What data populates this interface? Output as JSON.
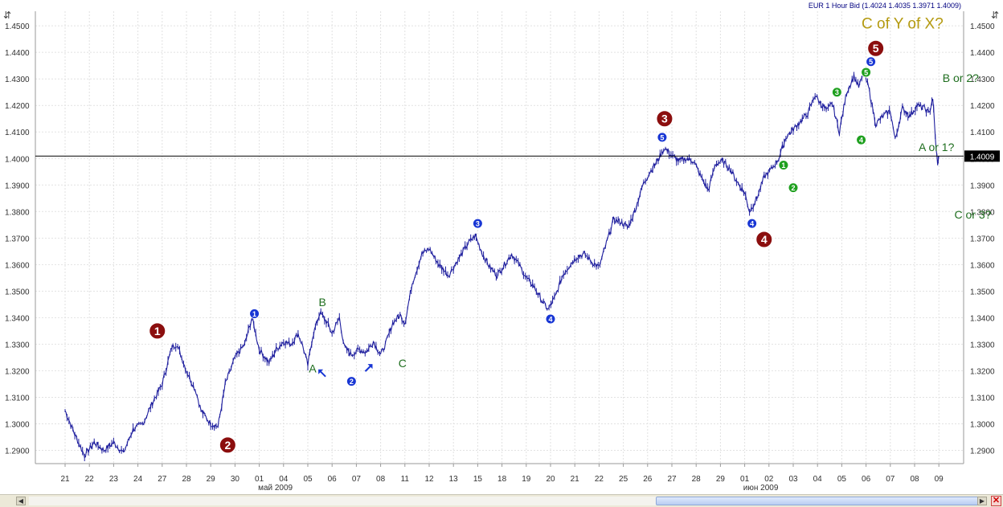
{
  "header": {
    "info": "EUR 1 Hour Bid (1.4024 1.4035 1.3971 1.4009)"
  },
  "price_tag": "1.4009",
  "icons": {
    "left": "scale-icon",
    "right": "scale-icon",
    "close": "close-icon"
  },
  "chart_data": {
    "type": "line",
    "title": "",
    "xlabel": "",
    "ylabel": "",
    "ylim": [
      1.285,
      1.4555
    ],
    "grid": true,
    "current_price": 1.4009,
    "y_ticks": [
      "1.2900",
      "1.3000",
      "1.3100",
      "1.3200",
      "1.3300",
      "1.3400",
      "1.3500",
      "1.3600",
      "1.3700",
      "1.3800",
      "1.3900",
      "1.4000",
      "1.4100",
      "1.4200",
      "1.4300",
      "1.4400",
      "1.4500"
    ],
    "x_ticks": [
      "21",
      "22",
      "23",
      "24",
      "27",
      "28",
      "29",
      "30",
      "01",
      "04",
      "05",
      "06",
      "07",
      "08",
      "11",
      "12",
      "13",
      "15",
      "18",
      "19",
      "20",
      "21",
      "22",
      "25",
      "26",
      "27",
      "28",
      "29",
      "01",
      "02",
      "03",
      "04",
      "05",
      "06",
      "07",
      "08",
      "09"
    ],
    "month_labels": [
      {
        "label": "май 2009",
        "at_index": 8
      },
      {
        "label": "июн 2009",
        "at_index": 28
      }
    ],
    "series": [
      {
        "points": [
          [
            0,
            1.305
          ],
          [
            0.4,
            1.296
          ],
          [
            0.8,
            1.288
          ],
          [
            1.2,
            1.293
          ],
          [
            1.6,
            1.29
          ],
          [
            2.0,
            1.293
          ],
          [
            2.4,
            1.289
          ],
          [
            2.8,
            1.298
          ],
          [
            3.2,
            1.3
          ],
          [
            3.6,
            1.308
          ],
          [
            4.0,
            1.315
          ],
          [
            4.4,
            1.329
          ],
          [
            4.6,
            1.33
          ],
          [
            5.0,
            1.32
          ],
          [
            5.4,
            1.312
          ],
          [
            5.6,
            1.305
          ],
          [
            6.0,
            1.3
          ],
          [
            6.3,
            1.299
          ],
          [
            6.6,
            1.315
          ],
          [
            7.0,
            1.325
          ],
          [
            7.4,
            1.33
          ],
          [
            7.7,
            1.34
          ],
          [
            8.0,
            1.328
          ],
          [
            8.4,
            1.323
          ],
          [
            8.7,
            1.328
          ],
          [
            9.0,
            1.331
          ],
          [
            9.3,
            1.33
          ],
          [
            9.6,
            1.334
          ],
          [
            9.8,
            1.329
          ],
          [
            10.0,
            1.322
          ],
          [
            10.2,
            1.333
          ],
          [
            10.5,
            1.342
          ],
          [
            10.8,
            1.338
          ],
          [
            11.0,
            1.334
          ],
          [
            11.3,
            1.34
          ],
          [
            11.5,
            1.329
          ],
          [
            11.8,
            1.326
          ],
          [
            12.1,
            1.328
          ],
          [
            12.4,
            1.327
          ],
          [
            12.7,
            1.331
          ],
          [
            13.0,
            1.326
          ],
          [
            13.2,
            1.33
          ],
          [
            13.5,
            1.338
          ],
          [
            13.8,
            1.341
          ],
          [
            14.0,
            1.338
          ],
          [
            14.3,
            1.353
          ],
          [
            14.7,
            1.364
          ],
          [
            15.0,
            1.366
          ],
          [
            15.4,
            1.36
          ],
          [
            15.8,
            1.356
          ],
          [
            16.2,
            1.362
          ],
          [
            16.6,
            1.368
          ],
          [
            16.9,
            1.371
          ],
          [
            17.2,
            1.364
          ],
          [
            17.5,
            1.359
          ],
          [
            17.8,
            1.356
          ],
          [
            18.1,
            1.36
          ],
          [
            18.4,
            1.364
          ],
          [
            18.7,
            1.36
          ],
          [
            19.0,
            1.355
          ],
          [
            19.3,
            1.352
          ],
          [
            19.6,
            1.347
          ],
          [
            19.9,
            1.343
          ],
          [
            20.2,
            1.348
          ],
          [
            20.5,
            1.356
          ],
          [
            20.8,
            1.36
          ],
          [
            21.1,
            1.363
          ],
          [
            21.4,
            1.364
          ],
          [
            21.7,
            1.361
          ],
          [
            22.0,
            1.359
          ],
          [
            22.3,
            1.368
          ],
          [
            22.6,
            1.377
          ],
          [
            22.9,
            1.376
          ],
          [
            23.2,
            1.374
          ],
          [
            23.5,
            1.381
          ],
          [
            23.8,
            1.39
          ],
          [
            24.1,
            1.395
          ],
          [
            24.4,
            1.399
          ],
          [
            24.7,
            1.404
          ],
          [
            25.0,
            1.401
          ],
          [
            25.3,
            1.399
          ],
          [
            25.6,
            1.4
          ],
          [
            25.9,
            1.399
          ],
          [
            26.2,
            1.393
          ],
          [
            26.5,
            1.388
          ],
          [
            26.8,
            1.398
          ],
          [
            27.1,
            1.399
          ],
          [
            27.4,
            1.396
          ],
          [
            27.7,
            1.391
          ],
          [
            28.0,
            1.387
          ],
          [
            28.2,
            1.38
          ],
          [
            28.5,
            1.385
          ],
          [
            28.8,
            1.393
          ],
          [
            29.1,
            1.396
          ],
          [
            29.4,
            1.4
          ],
          [
            29.7,
            1.408
          ],
          [
            30.0,
            1.411
          ],
          [
            30.3,
            1.414
          ],
          [
            30.6,
            1.417
          ],
          [
            30.9,
            1.424
          ],
          [
            31.1,
            1.421
          ],
          [
            31.4,
            1.418
          ],
          [
            31.6,
            1.421
          ],
          [
            31.9,
            1.41
          ],
          [
            32.2,
            1.425
          ],
          [
            32.5,
            1.431
          ],
          [
            32.7,
            1.427
          ],
          [
            32.9,
            1.432
          ],
          [
            33.1,
            1.427
          ],
          [
            33.4,
            1.413
          ],
          [
            33.7,
            1.416
          ],
          [
            34.0,
            1.418
          ],
          [
            34.2,
            1.407
          ],
          [
            34.5,
            1.419
          ],
          [
            34.8,
            1.416
          ],
          [
            35.1,
            1.42
          ],
          [
            35.4,
            1.419
          ],
          [
            35.6,
            1.417
          ],
          [
            35.75,
            1.423
          ],
          [
            35.85,
            1.408
          ],
          [
            35.95,
            1.3971
          ],
          [
            36.0,
            1.4009
          ]
        ]
      }
    ],
    "annotations": [
      {
        "text": "C of Y of X?",
        "x": 34.5,
        "y": 1.449,
        "style": "olive"
      },
      {
        "text": "B or 2?",
        "x": 36.9,
        "y": 1.4288,
        "style": "green"
      },
      {
        "text": "A or 1?",
        "x": 35.9,
        "y": 1.4028,
        "style": "green"
      },
      {
        "text": "C or 3?",
        "x": 37.4,
        "y": 1.3773,
        "style": "green"
      },
      {
        "text": "A",
        "x": 10.2,
        "y": 1.3193,
        "style": "green"
      },
      {
        "text": "B",
        "x": 10.6,
        "y": 1.3443,
        "style": "green"
      },
      {
        "text": "C",
        "x": 13.9,
        "y": 1.3213,
        "style": "green"
      }
    ],
    "wave_labels": [
      {
        "label": "1",
        "x": 3.8,
        "y": 1.335,
        "color": "#8b0e0e",
        "size": "large"
      },
      {
        "label": "2",
        "x": 6.7,
        "y": 1.292,
        "color": "#8b0e0e",
        "size": "large"
      },
      {
        "label": "3",
        "x": 24.7,
        "y": 1.415,
        "color": "#8b0e0e",
        "size": "large"
      },
      {
        "label": "4",
        "x": 28.8,
        "y": 1.3695,
        "color": "#8b0e0e",
        "size": "large"
      },
      {
        "label": "5",
        "x": 33.4,
        "y": 1.4415,
        "color": "#8b0e0e",
        "size": "large"
      },
      {
        "label": "1",
        "x": 7.8,
        "y": 1.3415,
        "color": "#1836d4",
        "size": "small"
      },
      {
        "label": "2",
        "x": 11.8,
        "y": 1.316,
        "color": "#1836d4",
        "size": "small"
      },
      {
        "label": "3",
        "x": 17.0,
        "y": 1.3755,
        "color": "#1836d4",
        "size": "small"
      },
      {
        "label": "4",
        "x": 20.0,
        "y": 1.3395,
        "color": "#1836d4",
        "size": "small"
      },
      {
        "label": "5",
        "x": 24.6,
        "y": 1.408,
        "color": "#1836d4",
        "size": "small"
      },
      {
        "label": "4",
        "x": 28.3,
        "y": 1.3755,
        "color": "#1836d4",
        "size": "small"
      },
      {
        "label": "5",
        "x": 33.2,
        "y": 1.4365,
        "color": "#1836d4",
        "size": "small"
      },
      {
        "label": "1",
        "x": 29.6,
        "y": 1.3975,
        "color": "#1fa01f",
        "size": "small"
      },
      {
        "label": "2",
        "x": 30.0,
        "y": 1.389,
        "color": "#1fa01f",
        "size": "small"
      },
      {
        "label": "3",
        "x": 31.8,
        "y": 1.425,
        "color": "#1fa01f",
        "size": "small"
      },
      {
        "label": "4",
        "x": 32.8,
        "y": 1.407,
        "color": "#1fa01f",
        "size": "small"
      },
      {
        "label": "5",
        "x": 33.0,
        "y": 1.4325,
        "color": "#1fa01f",
        "size": "small"
      }
    ],
    "arrows": [
      {
        "x": 10.6,
        "y": 1.319,
        "direction": "up-left",
        "color": "#1836d4"
      },
      {
        "x": 12.5,
        "y": 1.321,
        "direction": "up-right",
        "color": "#1836d4"
      }
    ]
  }
}
